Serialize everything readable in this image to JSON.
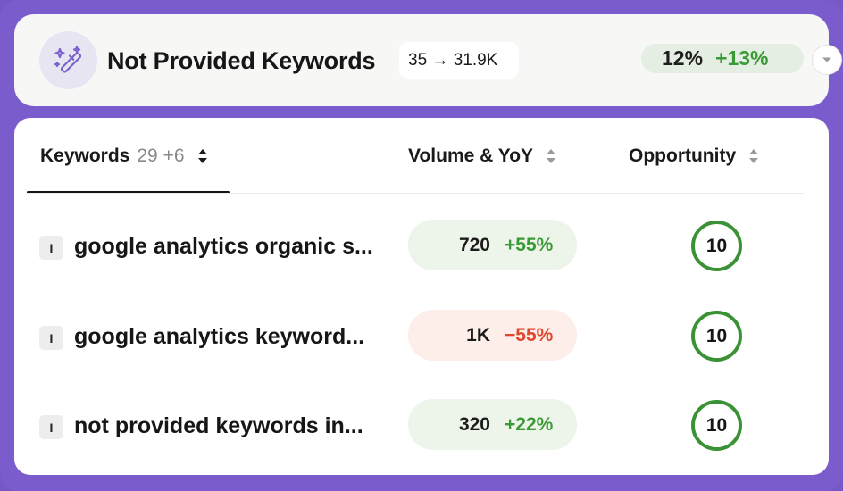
{
  "header": {
    "icon": "magic-wand-icon",
    "title": "Not Provided Keywords",
    "range": "35 → 31.9K",
    "share": "12%",
    "share_delta": "+13%",
    "accent_color": "#3a9a35",
    "frame_color": "#7a5ccc"
  },
  "table": {
    "columns": {
      "keywords": {
        "label": "Keywords",
        "count": "29 +6"
      },
      "volume": {
        "label": "Volume & YoY"
      },
      "opportunity": {
        "label": "Opportunity"
      }
    },
    "rows": [
      {
        "badge": "I",
        "keyword": "google analytics organic s...",
        "volume": "720",
        "yoy": "+55%",
        "trend": "up",
        "opportunity": "10"
      },
      {
        "badge": "I",
        "keyword": "google analytics keyword...",
        "volume": "1K",
        "yoy": "−55%",
        "trend": "down",
        "opportunity": "10"
      },
      {
        "badge": "I",
        "keyword": "not provided keywords in...",
        "volume": "320",
        "yoy": "+22%",
        "trend": "up",
        "opportunity": "10"
      }
    ]
  }
}
